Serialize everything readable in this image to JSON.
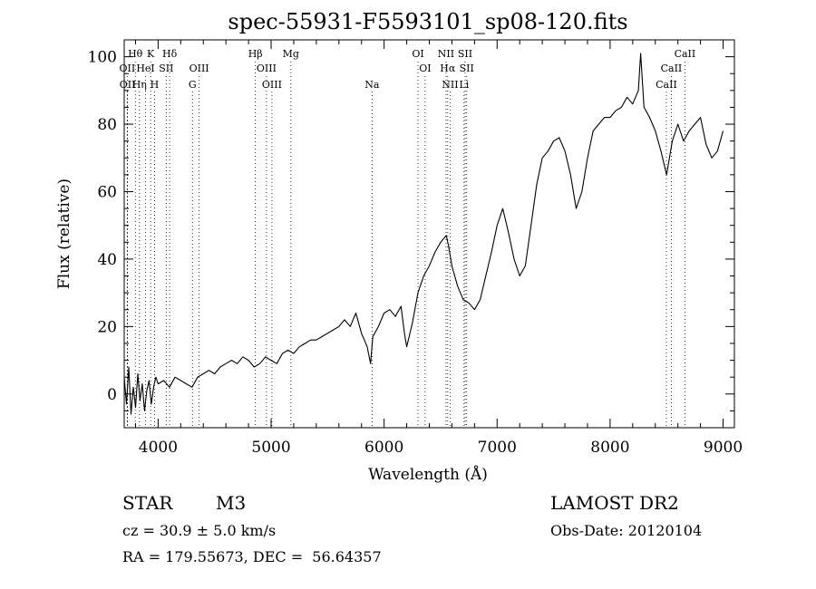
{
  "chart_data": {
    "type": "line",
    "title": "spec-55931-F5593101_sp08-120.fits",
    "xlabel": "Wavelength (Å)",
    "ylabel": "Flux (relative)",
    "xlim": [
      3700,
      9100
    ],
    "ylim": [
      -10,
      105
    ],
    "xticks": [
      4000,
      5000,
      6000,
      7000,
      8000,
      9000
    ],
    "yticks": [
      0,
      20,
      40,
      60,
      80,
      100
    ],
    "grid": false,
    "series": [
      {
        "x": [
          3700,
          3720,
          3740,
          3760,
          3780,
          3800,
          3820,
          3840,
          3860,
          3880,
          3900,
          3920,
          3940,
          3960,
          3980,
          4000,
          4050,
          4100,
          4150,
          4200,
          4250,
          4300,
          4350,
          4400,
          4450,
          4500,
          4550,
          4600,
          4650,
          4700,
          4750,
          4800,
          4850,
          4900,
          4950,
          5000,
          5050,
          5100,
          5150,
          5200,
          5250,
          5300,
          5350,
          5400,
          5450,
          5500,
          5550,
          5600,
          5650,
          5700,
          5750,
          5800,
          5850,
          5880,
          5900,
          5950,
          6000,
          6050,
          6100,
          6150,
          6180,
          6200,
          6250,
          6300,
          6350,
          6400,
          6450,
          6500,
          6550,
          6570,
          6600,
          6650,
          6700,
          6750,
          6800,
          6850,
          6900,
          6950,
          7000,
          7050,
          7100,
          7150,
          7200,
          7250,
          7300,
          7350,
          7400,
          7450,
          7500,
          7550,
          7600,
          7650,
          7700,
          7750,
          7800,
          7850,
          7900,
          7950,
          8000,
          8050,
          8100,
          8150,
          8200,
          8250,
          8270,
          8300,
          8350,
          8400,
          8450,
          8500,
          8550,
          8600,
          8650,
          8700,
          8750,
          8800,
          8850,
          8900,
          8950,
          9000
        ],
        "values": [
          5,
          -3,
          8,
          -6,
          2,
          -4,
          6,
          -2,
          3,
          -5,
          1,
          4,
          -3,
          2,
          5,
          3,
          4,
          2,
          5,
          4,
          3,
          2,
          5,
          6,
          7,
          6,
          8,
          9,
          10,
          9,
          11,
          10,
          8,
          9,
          11,
          10,
          9,
          12,
          13,
          12,
          14,
          15,
          16,
          16,
          17,
          18,
          19,
          20,
          22,
          20,
          24,
          18,
          14,
          9,
          17,
          20,
          24,
          25,
          23,
          26,
          18,
          14,
          21,
          30,
          35,
          38,
          42,
          45,
          47,
          44,
          38,
          32,
          28,
          27,
          25,
          28,
          35,
          42,
          50,
          55,
          48,
          40,
          35,
          38,
          50,
          62,
          70,
          72,
          75,
          76,
          72,
          65,
          55,
          60,
          70,
          78,
          80,
          82,
          82,
          84,
          85,
          88,
          86,
          90,
          101,
          85,
          82,
          78,
          72,
          65,
          75,
          80,
          75,
          78,
          80,
          82,
          74,
          70,
          72,
          78
        ]
      }
    ],
    "spectral_lines": [
      {
        "label": "Hθ",
        "wavelength": 3798,
        "row": 1
      },
      {
        "label": "K",
        "wavelength": 3934,
        "row": 1
      },
      {
        "label": "Hδ",
        "wavelength": 4102,
        "row": 1
      },
      {
        "label": "Hβ",
        "wavelength": 4861,
        "row": 1
      },
      {
        "label": "Mg",
        "wavelength": 5175,
        "row": 1
      },
      {
        "label": "OI",
        "wavelength": 6300,
        "row": 1
      },
      {
        "label": "NII",
        "wavelength": 6548,
        "row": 1
      },
      {
        "label": "SII",
        "wavelength": 6717,
        "row": 1
      },
      {
        "label": "CaII",
        "wavelength": 8662,
        "row": 1
      },
      {
        "label": "OII",
        "wavelength": 3727,
        "row": 2
      },
      {
        "label": "HeI",
        "wavelength": 3889,
        "row": 2
      },
      {
        "label": "SII",
        "wavelength": 4072,
        "row": 2
      },
      {
        "label": "OIII",
        "wavelength": 4363,
        "row": 2
      },
      {
        "label": "OIII",
        "wavelength": 4959,
        "row": 2
      },
      {
        "label": "OI",
        "wavelength": 6363,
        "row": 2
      },
      {
        "label": "Hα",
        "wavelength": 6563,
        "row": 2
      },
      {
        "label": "SII",
        "wavelength": 6731,
        "row": 2
      },
      {
        "label": "CaII",
        "wavelength": 8542,
        "row": 2
      },
      {
        "label": "OII",
        "wavelength": 3729,
        "row": 3
      },
      {
        "label": "Hη",
        "wavelength": 3835,
        "row": 3
      },
      {
        "label": "H",
        "wavelength": 3968,
        "row": 3
      },
      {
        "label": "G",
        "wavelength": 4304,
        "row": 3
      },
      {
        "label": "OIII",
        "wavelength": 5007,
        "row": 3
      },
      {
        "label": "Na",
        "wavelength": 5893,
        "row": 3
      },
      {
        "label": "NII",
        "wavelength": 6584,
        "row": 3
      },
      {
        "label": "Li",
        "wavelength": 6708,
        "row": 3
      },
      {
        "label": "CaII",
        "wavelength": 8498,
        "row": 3
      }
    ]
  },
  "info": {
    "object_class": "STAR",
    "subclass": "M3",
    "survey": "LAMOST DR2",
    "redshift": "cz = 30.9 ± 5.0 km/s",
    "obs_date": "Obs-Date: 20120104",
    "coords": "RA = 179.55673, DEC =  56.64357"
  }
}
